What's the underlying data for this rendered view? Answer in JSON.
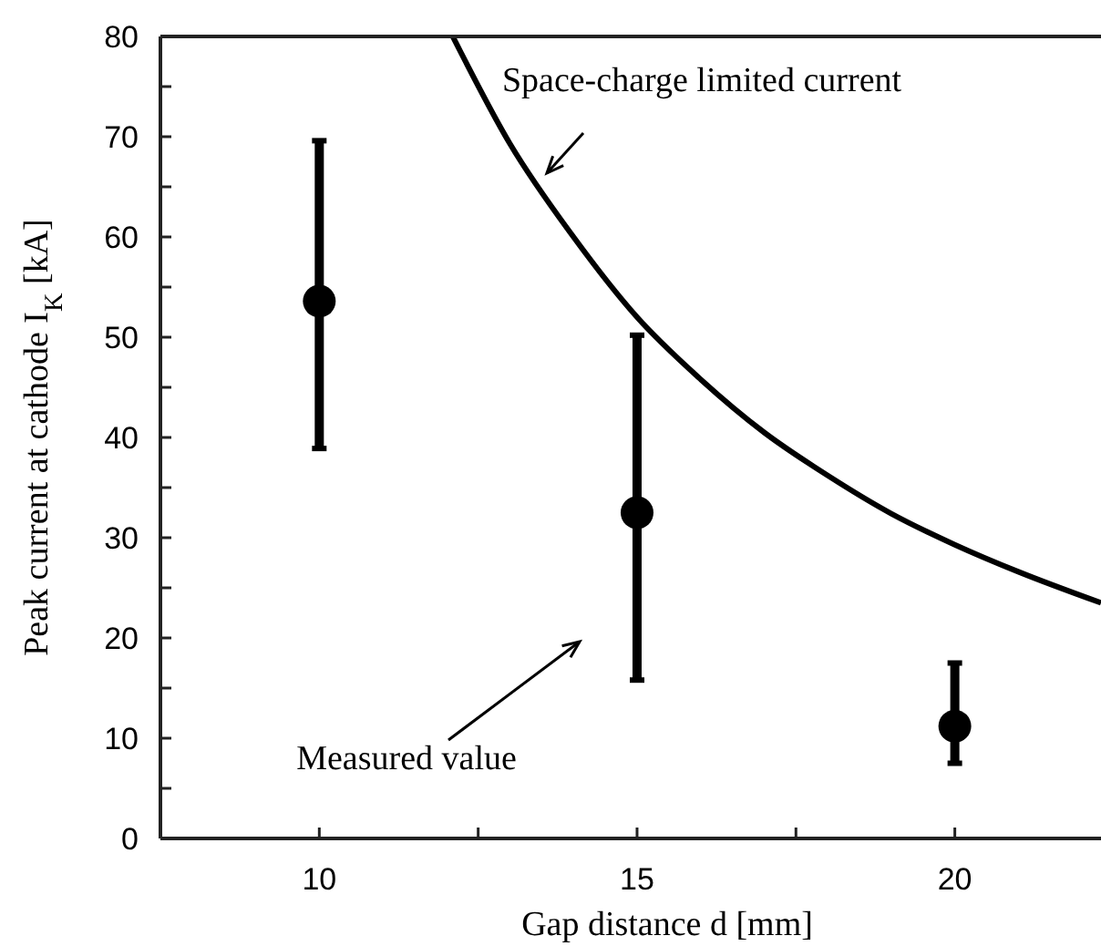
{
  "chart_data": {
    "type": "scatter",
    "xlabel": "Gap distance d [mm]",
    "ylabel": "Peak current at cathode I$_{K}$ [kA]",
    "xlim": [
      7.5,
      22.3
    ],
    "xticks": [
      10,
      {
        "value": 12.5,
        "label": null
      },
      15,
      {
        "value": 17.5,
        "label": null
      },
      20
    ],
    "ylim": [
      0,
      80
    ],
    "yticks": [
      0,
      {
        "value": 5,
        "label": null
      },
      10,
      {
        "value": 15,
        "label": null
      },
      20,
      {
        "value": 25,
        "label": null
      },
      30,
      {
        "value": 35,
        "label": null
      },
      40,
      {
        "value": 45,
        "label": null
      },
      50,
      {
        "value": 55,
        "label": null
      },
      60,
      {
        "value": 65,
        "label": null
      },
      70,
      {
        "value": 75,
        "label": null
      },
      80
    ],
    "grid": false,
    "series": [
      {
        "color": "#000000",
        "marker": "circle",
        "x": [
          10,
          15,
          20
        ],
        "values": [
          53.6,
          32.5,
          11.2
        ],
        "errors": [
          [
            38.9,
            69.6
          ],
          [
            15.8,
            50.2
          ],
          [
            7.5,
            17.5
          ]
        ]
      },
      {
        "type": "line",
        "color": "#000000",
        "line_style": "solid",
        "x": [
          12.1,
          13,
          14,
          15,
          16,
          17,
          18,
          19,
          20,
          21,
          22.3
        ],
        "values": [
          80,
          69.3,
          60,
          52,
          45.8,
          40.5,
          36.2,
          32.4,
          29.3,
          26.6,
          23.5
        ]
      }
    ],
    "annotations": [
      "Space-charge limited current",
      "Measured value"
    ]
  }
}
